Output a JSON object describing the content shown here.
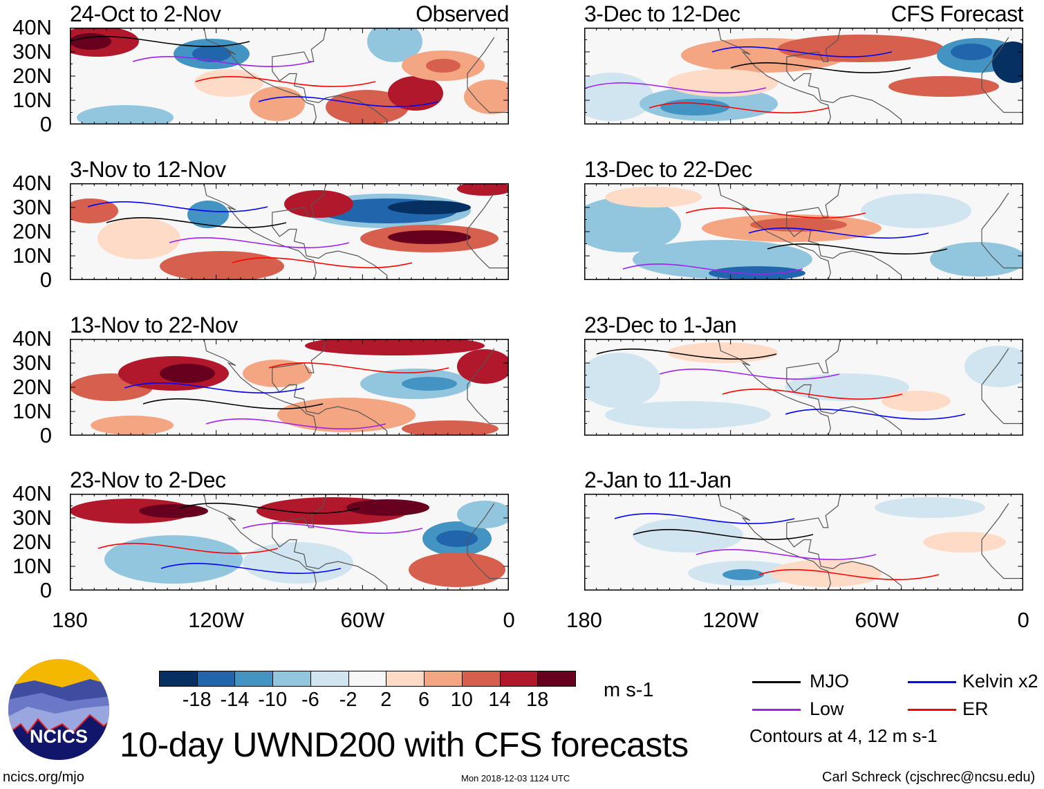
{
  "figure_title": "10-day UWND200 with CFS forecasts",
  "columns": {
    "left_label": "Observed",
    "right_label": "CFS Forecast"
  },
  "panels": [
    {
      "title": "24-Oct to 2-Nov",
      "column": "observed"
    },
    {
      "title": "3-Nov to 12-Nov",
      "column": "observed"
    },
    {
      "title": "13-Nov to 22-Nov",
      "column": "observed"
    },
    {
      "title": "23-Nov to 2-Dec",
      "column": "observed"
    },
    {
      "title": "3-Dec to 12-Dec",
      "column": "forecast"
    },
    {
      "title": "13-Dec to 22-Dec",
      "column": "forecast"
    },
    {
      "title": "23-Dec to 1-Jan",
      "column": "forecast"
    },
    {
      "title": "2-Jan to 11-Jan",
      "column": "forecast"
    }
  ],
  "lat_ticks": [
    "40N",
    "30N",
    "20N",
    "10N",
    "0"
  ],
  "lon_ticks": [
    "180",
    "120W",
    "60W",
    "0"
  ],
  "colorbar": {
    "colors": [
      "#053061",
      "#2166ac",
      "#4393c3",
      "#92c5de",
      "#d1e5f0",
      "#f7f7f7",
      "#fddbc7",
      "#f4a582",
      "#d6604d",
      "#b2182b",
      "#67001f"
    ],
    "labels": [
      "-18",
      "-14",
      "-10",
      "-6",
      "-2",
      "2",
      "6",
      "10",
      "14",
      "18"
    ],
    "units": "m s-1"
  },
  "legend": {
    "items": [
      {
        "label": "MJO",
        "color": "#000000"
      },
      {
        "label": "Kelvin x2",
        "color": "#0000ff"
      },
      {
        "label": "Low",
        "color": "#a020f0"
      },
      {
        "label": "ER",
        "color": "#ff0000"
      }
    ],
    "note": "Contours at 4, 12 m s-1"
  },
  "logo": {
    "text": "NCICS"
  },
  "footer": {
    "left": "ncics.org/mjo",
    "center": "Mon 2018-12-03 1124 UTC",
    "right": "Carl Schreck (cjschrec@ncsu.edu)"
  }
}
